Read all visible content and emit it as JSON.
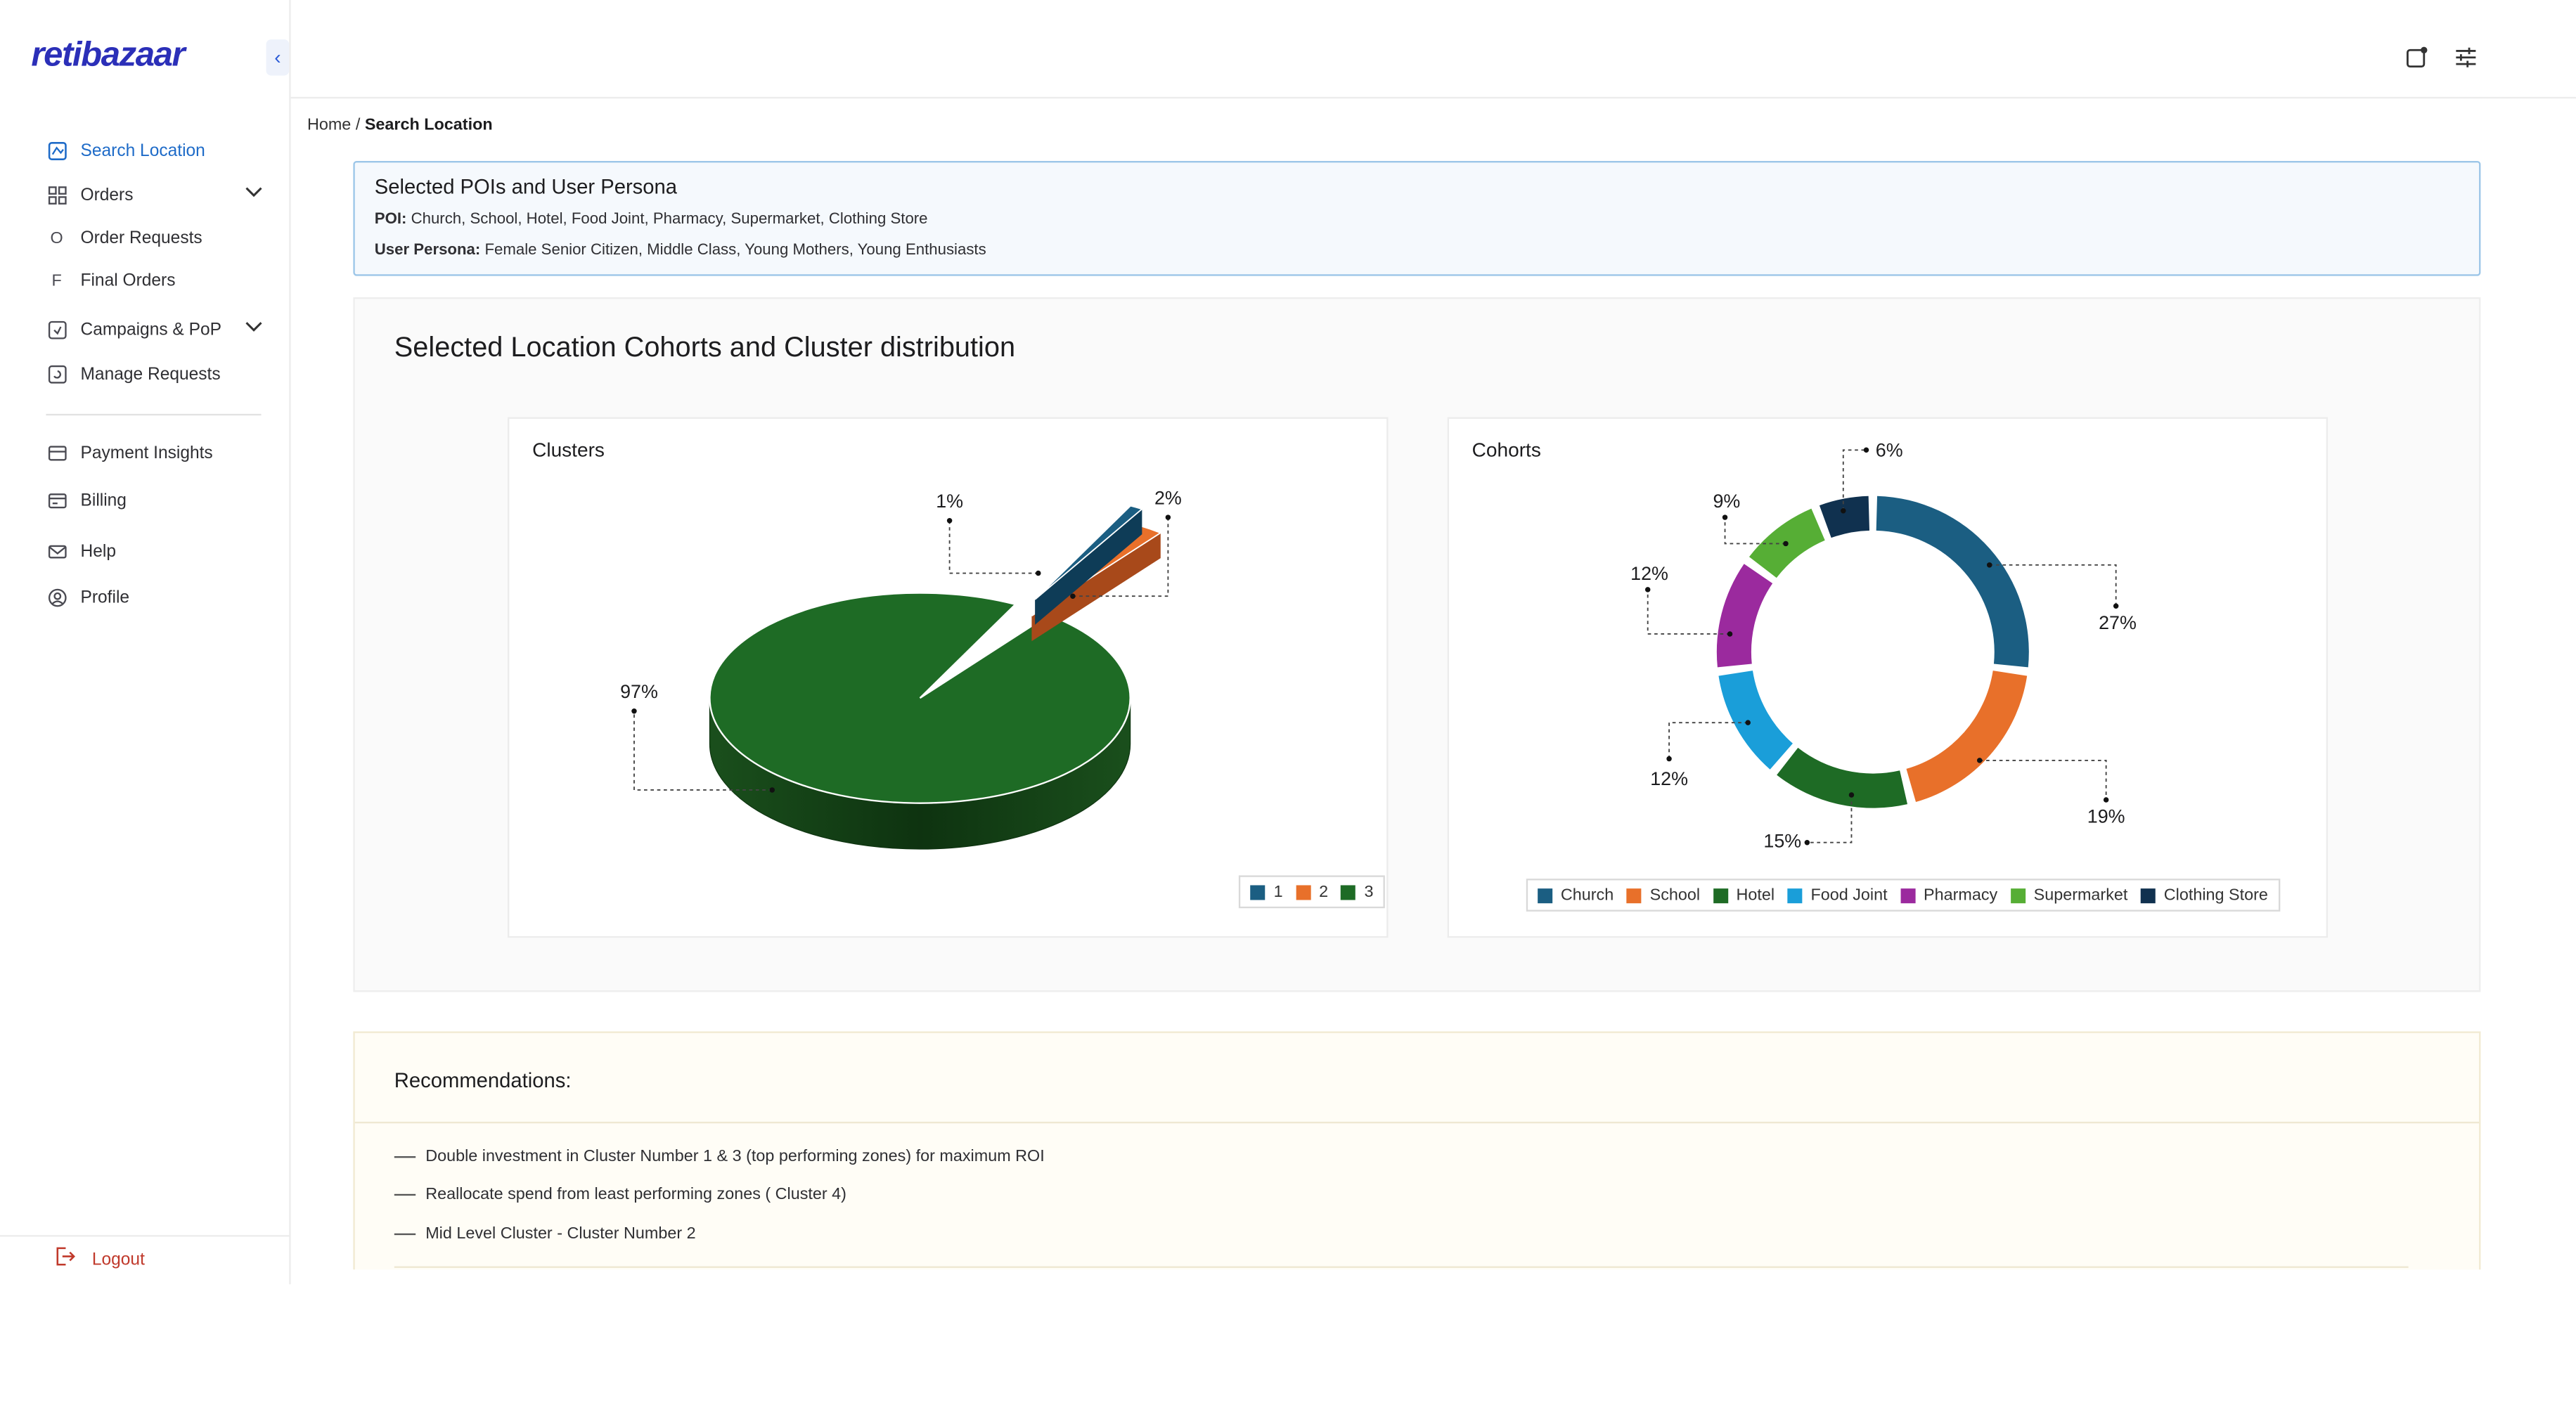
{
  "app": {
    "logo": "retibazaar"
  },
  "sidebar": {
    "items": [
      {
        "label": "Search Location"
      },
      {
        "label": "Orders"
      },
      {
        "label": "Order Requests",
        "prefix": "O"
      },
      {
        "label": "Final Orders",
        "prefix": "F"
      },
      {
        "label": "Campaigns & PoP"
      },
      {
        "label": "Manage Requests"
      },
      {
        "label": "Payment Insights"
      },
      {
        "label": "Billing"
      },
      {
        "label": "Help"
      },
      {
        "label": "Profile"
      }
    ],
    "logout": "Logout"
  },
  "breadcrumb": {
    "home": "Home",
    "sep": "/",
    "current": "Search Location"
  },
  "selection": {
    "title": "Selected POIs and User Persona",
    "poi_label": "POI:",
    "poi_value": "Church, School, Hotel, Food Joint, Pharmacy, Supermarket, Clothing Store",
    "persona_label": "User Persona:",
    "persona_value": "Female Senior Citizen, Middle Class, Young Mothers, Young Enthusiasts"
  },
  "panel": {
    "title": "Selected Location Cohorts and Cluster distribution"
  },
  "chart_data": [
    {
      "type": "pie",
      "title": "Clusters",
      "categories": [
        "1",
        "2",
        "3"
      ],
      "values": [
        1,
        2,
        97
      ],
      "labels": [
        "1%",
        "2%",
        "97%"
      ],
      "colors": [
        "#1b5e82",
        "#e8702a",
        "#1e6b25"
      ],
      "legend_position": "bottom-right"
    },
    {
      "type": "pie",
      "title": "Cohorts",
      "categories": [
        "Church",
        "School",
        "Hotel",
        "Food Joint",
        "Pharmacy",
        "Supermarket",
        "Clothing Store"
      ],
      "values": [
        27,
        19,
        15,
        12,
        12,
        9,
        6
      ],
      "labels": [
        "27%",
        "19%",
        "15%",
        "12%",
        "12%",
        "9%",
        "6%"
      ],
      "colors": [
        "#1b5e82",
        "#e8702a",
        "#1e6b25",
        "#1a9ed9",
        "#9b2a9e",
        "#56ae35",
        "#10314f"
      ],
      "legend_position": "bottom"
    }
  ],
  "recommendations": {
    "title": "Recommendations:",
    "items": [
      "Double investment in Cluster Number 1 & 3 (top performing zones) for maximum ROI",
      "Reallocate spend from least performing zones ( Cluster 4)",
      "Mid Level Cluster - Cluster Number 2"
    ]
  }
}
